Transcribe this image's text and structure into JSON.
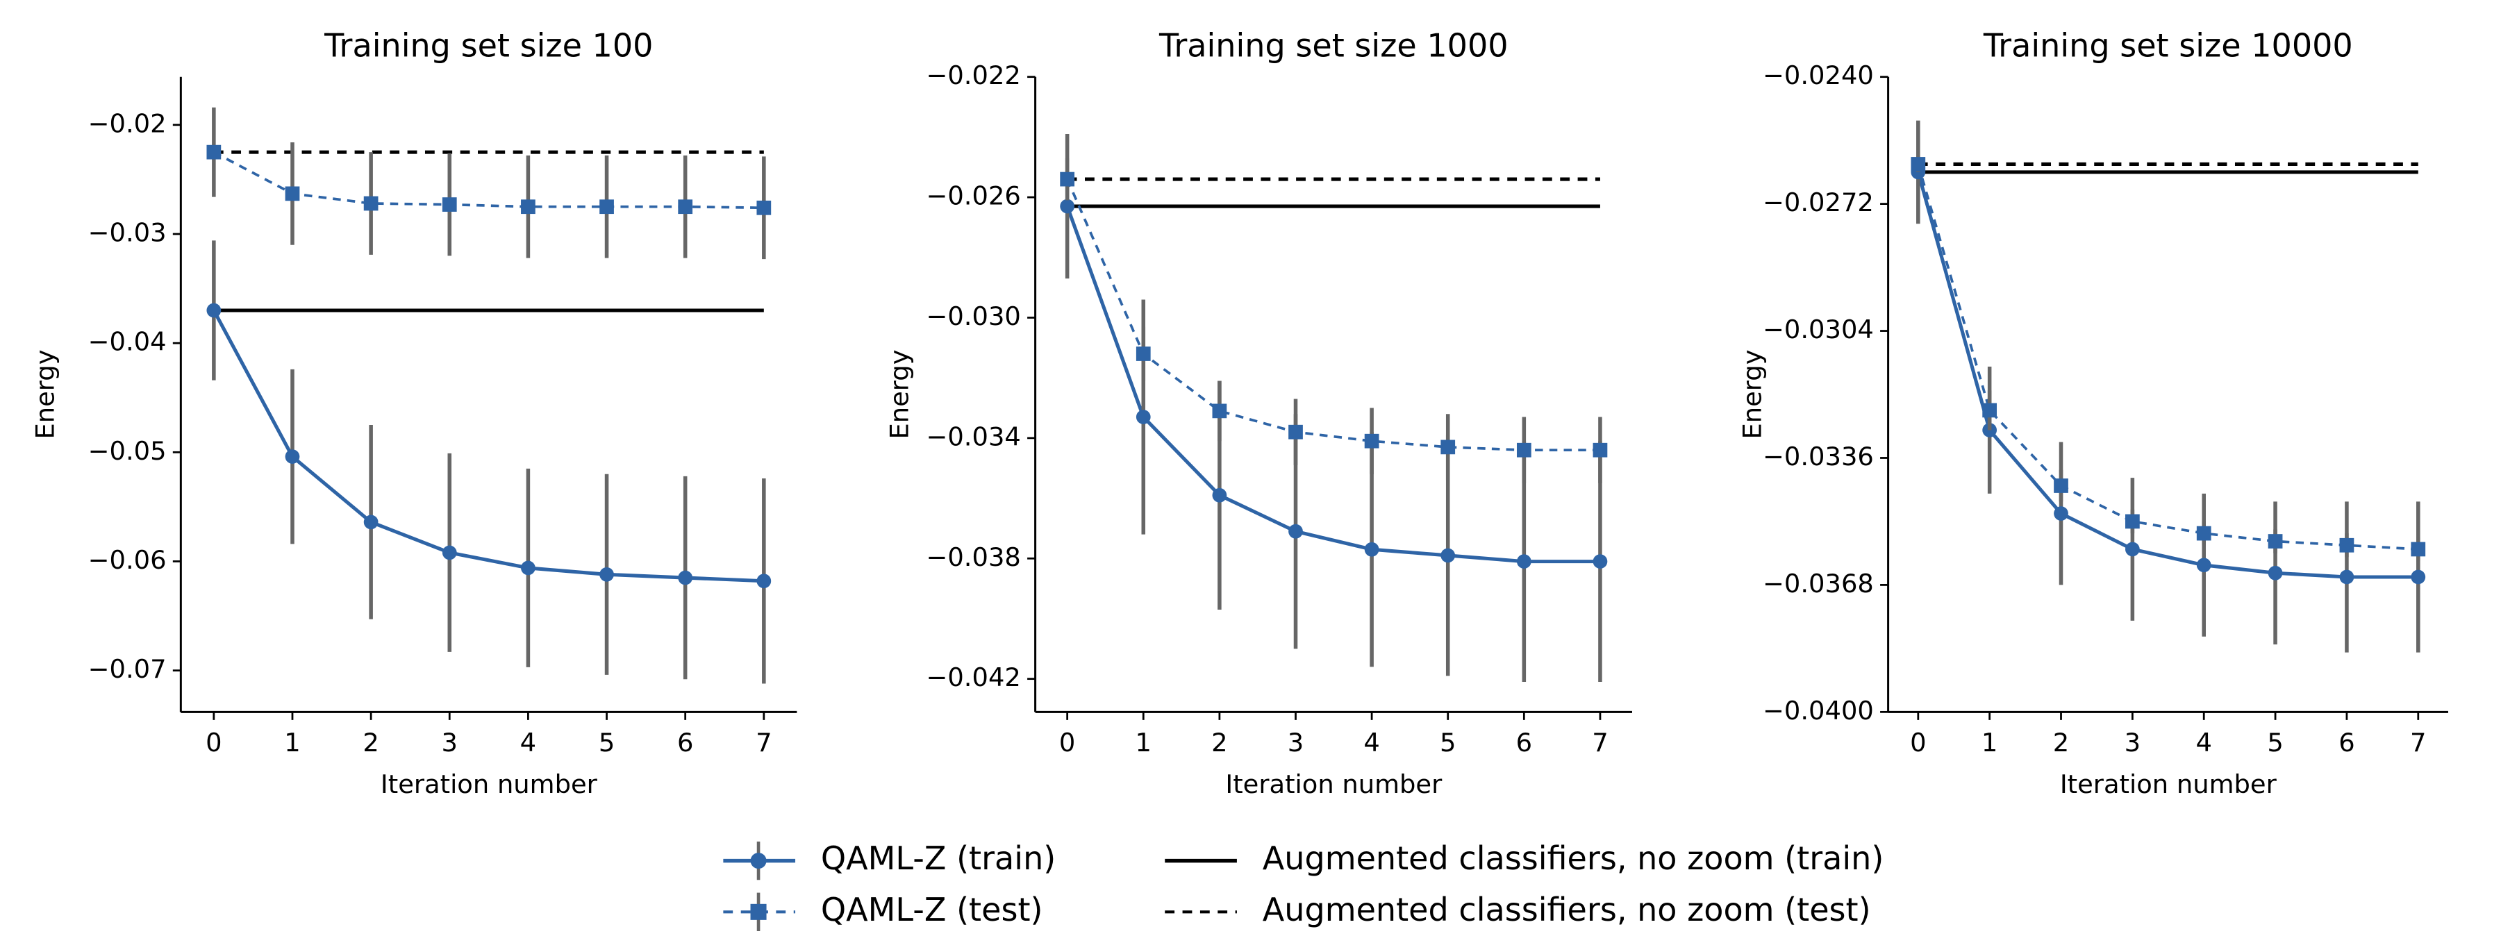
{
  "chart_data": [
    {
      "type": "line",
      "title": "Training set size 100",
      "xlabel": "Iteration number",
      "ylabel": "Energy",
      "x": [
        0,
        1,
        2,
        3,
        4,
        5,
        6,
        7
      ],
      "xlim": [
        -0.42,
        7.42
      ],
      "xticks": [
        0,
        1,
        2,
        3,
        4,
        5,
        6,
        7
      ],
      "ylim": [
        -0.0738,
        -0.0156
      ],
      "yticks": [
        {
          "value": -0.02,
          "label": "−0.02"
        },
        {
          "value": -0.03,
          "label": "−0.03"
        },
        {
          "value": -0.04,
          "label": "−0.04"
        },
        {
          "value": -0.05,
          "label": "−0.05"
        },
        {
          "value": -0.06,
          "label": "−0.06"
        },
        {
          "value": -0.07,
          "label": "−0.07"
        }
      ],
      "series": [
        {
          "name": "QAML-Z (train)",
          "color": "#2e64a6",
          "marker": "circle",
          "dash": false,
          "values": [
            -0.037,
            -0.0504,
            -0.0564,
            -0.0592,
            -0.0606,
            -0.0612,
            -0.0615,
            -0.0618
          ],
          "errors": [
            0.0064,
            0.008,
            0.0089,
            0.0091,
            0.0091,
            0.0092,
            0.0093,
            0.0094
          ]
        },
        {
          "name": "QAML-Z (test)",
          "color": "#2e64a6",
          "marker": "square",
          "dash": true,
          "values": [
            -0.0225,
            -0.0263,
            -0.0272,
            -0.0273,
            -0.0275,
            -0.0275,
            -0.0275,
            -0.0276
          ],
          "errors": [
            0.0041,
            0.0047,
            0.0047,
            0.0047,
            0.0047,
            0.0047,
            0.0047,
            0.0047
          ]
        },
        {
          "name": "Augmented classifiers, no zoom (train)",
          "color": "#000000",
          "marker": "none",
          "dash": false,
          "type": "hline",
          "value": -0.037,
          "xrange": [
            0,
            7
          ]
        },
        {
          "name": "Augmented classifiers, no zoom (test)",
          "color": "#000000",
          "marker": "none",
          "dash": true,
          "type": "hline",
          "value": -0.0225,
          "xrange": [
            0,
            7
          ]
        }
      ]
    },
    {
      "type": "line",
      "title": "Training set size 1000",
      "xlabel": "Iteration number",
      "ylabel": "Energy",
      "x": [
        0,
        1,
        2,
        3,
        4,
        5,
        6,
        7
      ],
      "xlim": [
        -0.42,
        7.42
      ],
      "xticks": [
        0,
        1,
        2,
        3,
        4,
        5,
        6,
        7
      ],
      "ylim": [
        -0.0431,
        -0.022
      ],
      "yticks": [
        {
          "value": -0.022,
          "label": "−0.022"
        },
        {
          "value": -0.026,
          "label": "−0.026"
        },
        {
          "value": -0.03,
          "label": "−0.030"
        },
        {
          "value": -0.034,
          "label": "−0.034"
        },
        {
          "value": -0.038,
          "label": "−0.038"
        },
        {
          "value": -0.042,
          "label": "−0.042"
        }
      ],
      "series": [
        {
          "color": "#2e64a6",
          "marker": "circle",
          "dash": false,
          "values": [
            -0.0263,
            -0.0333,
            -0.0359,
            -0.0371,
            -0.0377,
            -0.0379,
            -0.0381,
            -0.0381
          ],
          "errors": [
            0.0024,
            0.0039,
            0.0038,
            0.0039,
            0.0039,
            0.004,
            0.004,
            0.004
          ]
        },
        {
          "color": "#2e64a6",
          "marker": "square",
          "dash": true,
          "values": [
            -0.0254,
            -0.0312,
            -0.0331,
            -0.0338,
            -0.0341,
            -0.0343,
            -0.0344,
            -0.0344
          ],
          "errors": [
            0.0007,
            0.0009,
            0.001,
            0.0011,
            0.0011,
            0.0011,
            0.0011,
            0.0011
          ]
        },
        {
          "color": "#000000",
          "marker": "none",
          "dash": false,
          "type": "hline",
          "value": -0.0263,
          "xrange": [
            0,
            7
          ]
        },
        {
          "color": "#000000",
          "marker": "none",
          "dash": true,
          "type": "hline",
          "value": -0.0254,
          "xrange": [
            0,
            7
          ]
        }
      ]
    },
    {
      "type": "line",
      "title": "Training set size 10000",
      "xlabel": "Iteration number",
      "ylabel": "Energy",
      "x": [
        0,
        1,
        2,
        3,
        4,
        5,
        6,
        7
      ],
      "xlim": [
        -0.42,
        7.42
      ],
      "xticks": [
        0,
        1,
        2,
        3,
        4,
        5,
        6,
        7
      ],
      "ylim": [
        -0.04,
        -0.024
      ],
      "yticks": [
        {
          "value": -0.024,
          "label": "−0.0240"
        },
        {
          "value": -0.0272,
          "label": "−0.0272"
        },
        {
          "value": -0.0304,
          "label": "−0.0304"
        },
        {
          "value": -0.0336,
          "label": "−0.0336"
        },
        {
          "value": -0.0368,
          "label": "−0.0368"
        },
        {
          "value": -0.04,
          "label": "−0.0400"
        }
      ],
      "series": [
        {
          "color": "#2e64a6",
          "marker": "circle",
          "dash": false,
          "values": [
            -0.0264,
            -0.0329,
            -0.035,
            -0.0359,
            -0.0363,
            -0.0365,
            -0.0366,
            -0.0366
          ],
          "errors": [
            0.0013,
            0.0016,
            0.0018,
            0.0018,
            0.0018,
            0.0018,
            0.0019,
            0.0019
          ]
        },
        {
          "color": "#2e64a6",
          "marker": "square",
          "dash": true,
          "values": [
            -0.0262,
            -0.0324,
            -0.0343,
            -0.0352,
            -0.0355,
            -0.0357,
            -0.0358,
            -0.0359
          ],
          "errors": [
            0.0002,
            0.0005,
            0.0004,
            0.0003,
            0.0003,
            0.0003,
            0.0003,
            0.0003
          ]
        },
        {
          "color": "#000000",
          "marker": "none",
          "dash": false,
          "type": "hline",
          "value": -0.0264,
          "xrange": [
            0,
            7
          ]
        },
        {
          "color": "#000000",
          "marker": "none",
          "dash": true,
          "type": "hline",
          "value": -0.0262,
          "xrange": [
            0,
            7
          ]
        }
      ]
    }
  ]
}
